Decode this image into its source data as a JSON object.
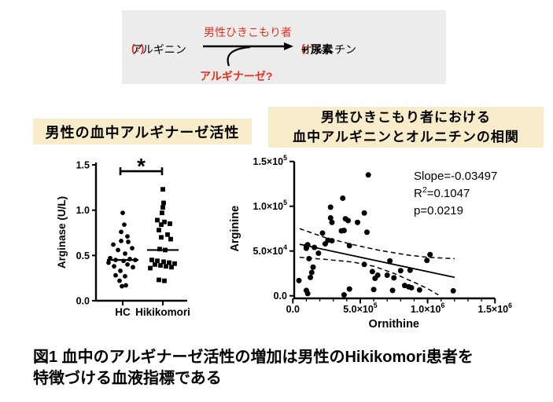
{
  "diagram": {
    "substrate": "アルギニン ",
    "substrate_change": "(↓)",
    "arrow_label": "男性ひきこもり者",
    "product": "オルニチン ",
    "product_change": "(↑)",
    "product_suffix": " + 尿素",
    "enzyme": "アルギナーゼ?"
  },
  "left_panel": {
    "title": "男性の血中アルギナーゼ活性"
  },
  "right_panel": {
    "title_line1": "男性ひきこもり者における",
    "title_line2": "血中アルギニンとオルニチンの相関"
  },
  "caption": {
    "line1": "図1 血中のアルギナーゼ活性の増加は男性のHikikomori患者を",
    "line2": "特徴づける血液指標である"
  },
  "colors": {
    "ink": "#000000",
    "accent_red": "#e63020",
    "title_highlight": "#f8ecca",
    "diagram_bg": "#ececec"
  },
  "chart_data": [
    {
      "type": "scatter",
      "subtype": "grouped-dot-plot",
      "title": "男性の血中アルギナーゼ活性",
      "ylabel": "Arginase (U/L)",
      "ylim": [
        0,
        1.5
      ],
      "yticks": [
        {
          "v": 0.0,
          "label": "0.0"
        },
        {
          "v": 0.5,
          "label": "0.5"
        },
        {
          "v": 1.0,
          "label": "1.0"
        },
        {
          "v": 1.5,
          "label": "1.5"
        }
      ],
      "categories": [
        "HC",
        "Hikikomori"
      ],
      "groups": [
        {
          "name": "HC",
          "marker": "circle",
          "median": 0.45,
          "points": [
            [
              0,
              0.97
            ],
            [
              2,
              0.84
            ],
            [
              -2,
              0.76
            ],
            [
              6,
              0.71
            ],
            [
              -2,
              0.66
            ],
            [
              7,
              0.65
            ],
            [
              -12,
              0.62
            ],
            [
              12,
              0.58
            ],
            [
              -6,
              0.56
            ],
            [
              3,
              0.52
            ],
            [
              -16,
              0.47
            ],
            [
              9,
              0.46
            ],
            [
              -9,
              0.45
            ],
            [
              16,
              0.45
            ],
            [
              1,
              0.44
            ],
            [
              -18,
              0.42
            ],
            [
              6,
              0.4
            ],
            [
              -11,
              0.38
            ],
            [
              13,
              0.37
            ],
            [
              -3,
              0.33
            ],
            [
              -9,
              0.28
            ],
            [
              3,
              0.27
            ],
            [
              -4,
              0.22
            ],
            [
              4,
              0.17
            ],
            [
              -1,
              0.16
            ]
          ]
        },
        {
          "name": "Hikikomori",
          "marker": "square",
          "median": 0.56,
          "points": [
            [
              0,
              1.23
            ],
            [
              1,
              1.08
            ],
            [
              0,
              1.03
            ],
            [
              -1,
              0.97
            ],
            [
              -7,
              0.89
            ],
            [
              2,
              0.87
            ],
            [
              9,
              0.85
            ],
            [
              -2,
              0.84
            ],
            [
              -5,
              0.78
            ],
            [
              6,
              0.73
            ],
            [
              -2,
              0.7
            ],
            [
              10,
              0.68
            ],
            [
              -4,
              0.57
            ],
            [
              3,
              0.56
            ],
            [
              -14,
              0.45
            ],
            [
              -7,
              0.44
            ],
            [
              1,
              0.43
            ],
            [
              8,
              0.42
            ],
            [
              15,
              0.41
            ],
            [
              -10,
              0.4
            ],
            [
              -3,
              0.39
            ],
            [
              4,
              0.38
            ],
            [
              11,
              0.37
            ],
            [
              -16,
              0.36
            ],
            [
              -5,
              0.23
            ],
            [
              2,
              0.22
            ]
          ]
        }
      ],
      "significance": {
        "label": "*",
        "y": 1.43
      }
    },
    {
      "type": "scatter",
      "title": "男性ひきこもり者における血中アルギニンとオルニチンの相関",
      "xlabel": "Ornithine",
      "ylabel": "Arginine",
      "xlim": [
        0,
        1500000
      ],
      "ylim": [
        0,
        150000
      ],
      "xticks": [
        {
          "v": 0,
          "label": "0.0"
        },
        {
          "v": 500000,
          "label": "5.0×10^5"
        },
        {
          "v": 1000000,
          "label": "1.0×10^6"
        },
        {
          "v": 1500000,
          "label": "1.5×10^6"
        }
      ],
      "yticks": [
        {
          "v": 0,
          "label": "0.0"
        },
        {
          "v": 50000,
          "label": "5.0×10^4"
        },
        {
          "v": 100000,
          "label": "1.0×10^5"
        },
        {
          "v": 150000,
          "label": "1.5×10^5"
        }
      ],
      "minor_x_step": 100000,
      "points": [
        [
          45000,
          17000
        ],
        [
          100000,
          6000
        ],
        [
          110000,
          2500
        ],
        [
          120000,
          41500
        ],
        [
          100000,
          55500
        ],
        [
          110000,
          57000
        ],
        [
          100000,
          53000
        ],
        [
          160000,
          54000
        ],
        [
          190000,
          47500
        ],
        [
          150000,
          32000
        ],
        [
          140000,
          26000
        ],
        [
          130000,
          20500
        ],
        [
          220000,
          70000
        ],
        [
          240000,
          58000
        ],
        [
          260000,
          62000
        ],
        [
          290000,
          61500
        ],
        [
          280000,
          99000
        ],
        [
          280000,
          87000
        ],
        [
          290000,
          82000
        ],
        [
          360000,
          72500
        ],
        [
          380000,
          73000
        ],
        [
          370000,
          109000
        ],
        [
          390000,
          86000
        ],
        [
          410000,
          84000
        ],
        [
          380000,
          1000
        ],
        [
          420000,
          7500
        ],
        [
          420000,
          56000
        ],
        [
          480000,
          82000
        ],
        [
          530000,
          92500
        ],
        [
          560000,
          135000
        ],
        [
          550000,
          71000
        ],
        [
          530000,
          35000
        ],
        [
          590000,
          27000
        ],
        [
          600000,
          7000
        ],
        [
          610000,
          19500
        ],
        [
          630000,
          23000
        ],
        [
          700000,
          23000
        ],
        [
          720000,
          39000
        ],
        [
          740000,
          6000
        ],
        [
          750000,
          20000
        ],
        [
          800000,
          28000
        ],
        [
          830000,
          11500
        ],
        [
          860000,
          10000
        ],
        [
          870000,
          28500
        ],
        [
          880000,
          9000
        ],
        [
          940000,
          6500
        ],
        [
          995000,
          39500
        ],
        [
          1018000,
          46000
        ],
        [
          1190000,
          5500
        ]
      ],
      "regression": {
        "slope": -0.03497,
        "solid": [
          [
            50000,
            57500
          ],
          [
            1200000,
            20500
          ]
        ],
        "ci_upper": [
          [
            50000,
            75000
          ],
          [
            250000,
            64500
          ],
          [
            450000,
            57000
          ],
          [
            650000,
            50500
          ],
          [
            850000,
            45500
          ],
          [
            1000000,
            43000
          ],
          [
            1200000,
            41500
          ]
        ],
        "ci_lower": [
          [
            50000,
            43000
          ],
          [
            250000,
            40500
          ],
          [
            450000,
            37500
          ],
          [
            600000,
            33000
          ],
          [
            750000,
            25000
          ],
          [
            900000,
            15000
          ],
          [
            1000000,
            8000
          ],
          [
            1080000,
            1000
          ]
        ]
      },
      "annotations": [
        "Slope=-0.03497",
        "R^2=0.1047",
        "p=0.0219"
      ]
    }
  ]
}
